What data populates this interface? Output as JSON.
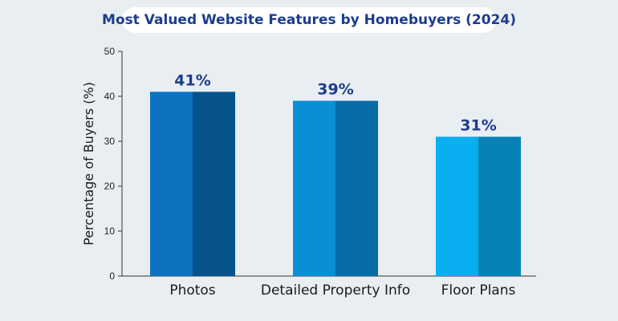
{
  "chart_data": {
    "type": "bar",
    "title": "Most Valued Website Features by Homebuyers (2024)",
    "ylabel": "Percentage of Buyers (%)",
    "xlabel": "",
    "ylim": [
      0,
      50
    ],
    "yticks": [
      0,
      10,
      20,
      30,
      40,
      50
    ],
    "categories": [
      "Photos",
      "Detailed Property Info",
      "Floor Plans"
    ],
    "values": [
      41,
      39,
      31
    ],
    "data_labels": [
      "41%",
      "39%",
      "31%"
    ],
    "grid": false,
    "colors": {
      "bar_light": [
        "#0b72c0",
        "#0a8fd6",
        "#08aef0"
      ],
      "bar_dark": [
        "#07548c",
        "#066da6",
        "#0682b6"
      ],
      "title": "#1d3c8c",
      "background": "#e9eef2"
    }
  }
}
